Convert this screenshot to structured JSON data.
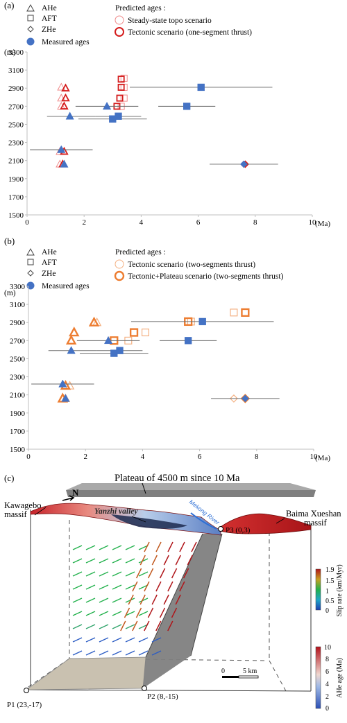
{
  "panel_a": {
    "label": "(a)",
    "legend": {
      "ahe": "AHe",
      "aft": "AFT",
      "zhe": "ZHe",
      "measured": "Measured ages",
      "predicted_title": "Predicted ages :",
      "s1": "Steady-state topo scenario",
      "s2": "Tectonic scenario (one-segment thrust)"
    },
    "xlabel": "(Ma)",
    "yunit": "(m)"
  },
  "panel_b": {
    "label": "(b)",
    "legend": {
      "ahe": "AHe",
      "aft": "AFT",
      "zhe": "ZHe",
      "measured": "Measured ages",
      "predicted_title": "Predicted ages :",
      "s1": "Tectonic scenario (two-segments thrust)",
      "s2": "Tectonic+Plateau scenario (two-segments thrust)"
    },
    "xlabel": "(Ma)",
    "yunit": "(m)"
  },
  "panel_c": {
    "label": "(c)",
    "plateau": "Plateau of 4500 m since 10 Ma",
    "north": "N",
    "kawagebo_1": "Kawagebo",
    "kawagebo_2": "massif",
    "baima_1": "Baima Xueshan",
    "baima_2": "massif",
    "valley": "Yanzhi valley",
    "river": "Mekong River",
    "p1": "P1 (23,-17)",
    "p2": "P2 (8,-15)",
    "p3": "P3 (0,3)",
    "slip_label": "Slip rate (km/Myr)",
    "slip_ticks": [
      "1.9",
      "1.5",
      "1",
      "0.5",
      "0"
    ],
    "ahe_label": "AHe age (Ma)",
    "ahe_ticks": [
      "10",
      "8",
      "6",
      "4",
      "2",
      "0"
    ],
    "scale_0": "0",
    "scale_5": "5 km"
  },
  "colors": {
    "measured": "#4472c4",
    "steady": "#f08a8a",
    "tectonic_a": "#d41c1c",
    "tectonic_b": "#f4b183",
    "plateau_b": "#ed7d31",
    "axis": "#bfbfbf"
  },
  "chart_data": [
    {
      "type": "scatter",
      "panel": "(a)",
      "xlabel": "(Ma)",
      "ylabel": "(m)",
      "xlim": [
        0,
        10
      ],
      "ylim": [
        1500,
        3300
      ],
      "xticks": [
        0,
        2,
        4,
        6,
        8,
        10
      ],
      "yticks": [
        1500,
        1700,
        1900,
        2100,
        2300,
        2500,
        2700,
        2900,
        3100,
        3300
      ],
      "grid": false,
      "series": [
        {
          "name": "Measured ages",
          "points": [
            {
              "system": "AHe",
              "x": 1.5,
              "y": 2590,
              "xerr": [
                0.7,
                2.4
              ]
            },
            {
              "system": "AHe",
              "x": 1.2,
              "y": 2220,
              "xerr": [
                0.1,
                2.3
              ]
            },
            {
              "system": "AHe",
              "x": 1.3,
              "y": 2060
            },
            {
              "system": "AHe",
              "x": 2.8,
              "y": 2700,
              "xerr": [
                1.7,
                3.9
              ]
            },
            {
              "system": "AFT",
              "x": 3.0,
              "y": 2560,
              "xerr": [
                1.8,
                4.2
              ]
            },
            {
              "system": "AFT",
              "x": 3.2,
              "y": 2590,
              "xerr": [
                2.4,
                4.0
              ]
            },
            {
              "system": "AFT",
              "x": 5.6,
              "y": 2700,
              "xerr": [
                4.6,
                6.6
              ]
            },
            {
              "system": "AFT",
              "x": 6.1,
              "y": 2910,
              "xerr": [
                3.6,
                8.6
              ]
            },
            {
              "system": "ZHe",
              "x": 7.6,
              "y": 2060,
              "xerr": [
                6.4,
                8.8
              ]
            }
          ]
        },
        {
          "name": "Steady-state topo scenario",
          "points": [
            {
              "system": "AHe",
              "x": 1.2,
              "y": 2910
            },
            {
              "system": "AHe",
              "x": 1.2,
              "y": 2790
            },
            {
              "system": "AHe",
              "x": 1.2,
              "y": 2700
            },
            {
              "system": "AHe",
              "x": 1.15,
              "y": 2200
            },
            {
              "system": "AHe",
              "x": 1.15,
              "y": 2060
            },
            {
              "system": "AFT",
              "x": 3.4,
              "y": 3010
            },
            {
              "system": "AFT",
              "x": 3.4,
              "y": 2910
            },
            {
              "system": "AFT",
              "x": 3.4,
              "y": 2790
            },
            {
              "system": "AFT",
              "x": 3.3,
              "y": 2700
            },
            {
              "system": "ZHe",
              "x": 7.6,
              "y": 2060
            }
          ]
        },
        {
          "name": "Tectonic scenario (one-segment thrust)",
          "points": [
            {
              "system": "AHe",
              "x": 1.35,
              "y": 2900
            },
            {
              "system": "AHe",
              "x": 1.35,
              "y": 2790
            },
            {
              "system": "AHe",
              "x": 1.3,
              "y": 2700
            },
            {
              "system": "AHe",
              "x": 1.3,
              "y": 2200
            },
            {
              "system": "AHe",
              "x": 1.25,
              "y": 2060
            },
            {
              "system": "AFT",
              "x": 3.3,
              "y": 3000
            },
            {
              "system": "AFT",
              "x": 3.3,
              "y": 2910
            },
            {
              "system": "AFT",
              "x": 3.25,
              "y": 2790
            },
            {
              "system": "AFT",
              "x": 3.15,
              "y": 2700
            },
            {
              "system": "ZHe",
              "x": 7.65,
              "y": 2060
            }
          ]
        }
      ]
    },
    {
      "type": "scatter",
      "panel": "(b)",
      "xlabel": "(Ma)",
      "ylabel": "(m)",
      "xlim": [
        0,
        10
      ],
      "ylim": [
        1500,
        3300
      ],
      "xticks": [
        0,
        2,
        4,
        6,
        8,
        10
      ],
      "yticks": [
        1500,
        1700,
        1900,
        2100,
        2300,
        2500,
        2700,
        2900,
        3100,
        3300
      ],
      "grid": false,
      "series": [
        {
          "name": "Measured ages",
          "points": [
            {
              "system": "AHe",
              "x": 1.5,
              "y": 2590,
              "xerr": [
                0.7,
                2.4
              ]
            },
            {
              "system": "AHe",
              "x": 1.2,
              "y": 2220,
              "xerr": [
                0.1,
                2.3
              ]
            },
            {
              "system": "AHe",
              "x": 1.3,
              "y": 2060
            },
            {
              "system": "AHe",
              "x": 2.8,
              "y": 2700,
              "xerr": [
                1.7,
                3.9
              ]
            },
            {
              "system": "AFT",
              "x": 3.0,
              "y": 2560,
              "xerr": [
                1.8,
                4.2
              ]
            },
            {
              "system": "AFT",
              "x": 3.2,
              "y": 2590,
              "xerr": [
                2.4,
                4.0
              ]
            },
            {
              "system": "AFT",
              "x": 5.6,
              "y": 2700,
              "xerr": [
                4.6,
                6.6
              ]
            },
            {
              "system": "AFT",
              "x": 6.1,
              "y": 2910,
              "xerr": [
                3.6,
                8.6
              ]
            },
            {
              "system": "ZHe",
              "x": 7.6,
              "y": 2060,
              "xerr": [
                6.4,
                8.8
              ]
            }
          ]
        },
        {
          "name": "Tectonic scenario (two-segments thrust)",
          "points": [
            {
              "system": "AHe",
              "x": 2.4,
              "y": 2900
            },
            {
              "system": "AHe",
              "x": 1.6,
              "y": 2790
            },
            {
              "system": "AHe",
              "x": 1.5,
              "y": 2700
            },
            {
              "system": "AHe",
              "x": 1.45,
              "y": 2200
            },
            {
              "system": "AHe",
              "x": 1.3,
              "y": 2060
            },
            {
              "system": "AFT",
              "x": 7.2,
              "y": 3010
            },
            {
              "system": "AFT",
              "x": 5.7,
              "y": 2910
            },
            {
              "system": "AFT",
              "x": 4.1,
              "y": 2790
            },
            {
              "system": "AFT",
              "x": 3.5,
              "y": 2700
            },
            {
              "system": "ZHe",
              "x": 7.2,
              "y": 2060
            }
          ]
        },
        {
          "name": "Tectonic+Plateau scenario (two-segments thrust)",
          "points": [
            {
              "system": "AHe",
              "x": 2.3,
              "y": 2900
            },
            {
              "system": "AHe",
              "x": 1.6,
              "y": 2790
            },
            {
              "system": "AHe",
              "x": 1.5,
              "y": 2700
            },
            {
              "system": "AHe",
              "x": 1.3,
              "y": 2200
            },
            {
              "system": "AHe",
              "x": 1.2,
              "y": 2060
            },
            {
              "system": "AFT",
              "x": 7.6,
              "y": 3010
            },
            {
              "system": "AFT",
              "x": 5.6,
              "y": 2910
            },
            {
              "system": "AFT",
              "x": 3.7,
              "y": 2790
            },
            {
              "system": "AFT",
              "x": 3.0,
              "y": 2700
            },
            {
              "system": "ZHe",
              "x": 7.6,
              "y": 2060
            }
          ]
        }
      ]
    }
  ]
}
